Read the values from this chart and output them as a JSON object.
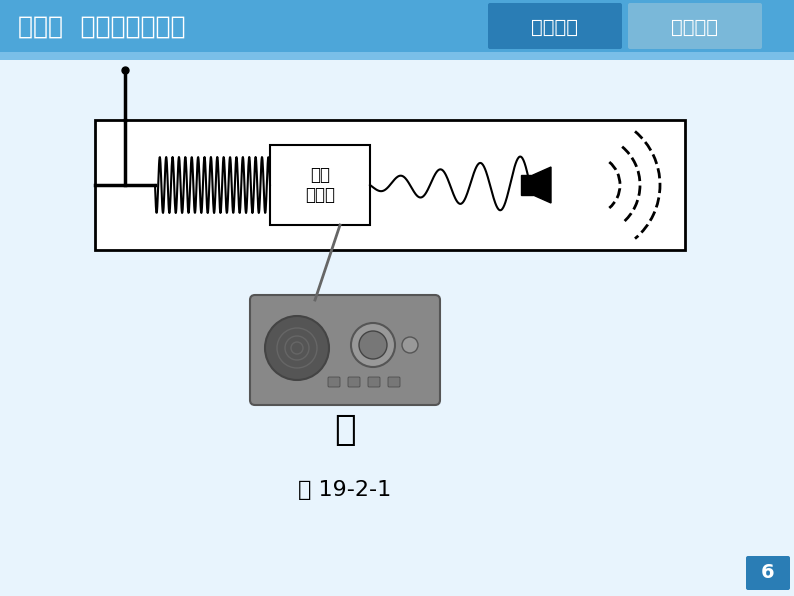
{
  "bg_color": "#e8f4fd",
  "header_color": "#4da6d9",
  "header_text": "知识点  广播电视与通信",
  "btn1_text": "随堂演练",
  "btn1_color": "#2a7db5",
  "btn2_text": "课后达标",
  "btn2_color": "#7ab8d9",
  "box_color": "#000000",
  "label_text": "选台\n和解调",
  "caption_text": "乙",
  "figure_label": "图 19-2-1",
  "page_num": "6",
  "page_color": "#2a7db5",
  "white": "#ffffff",
  "black": "#000000"
}
